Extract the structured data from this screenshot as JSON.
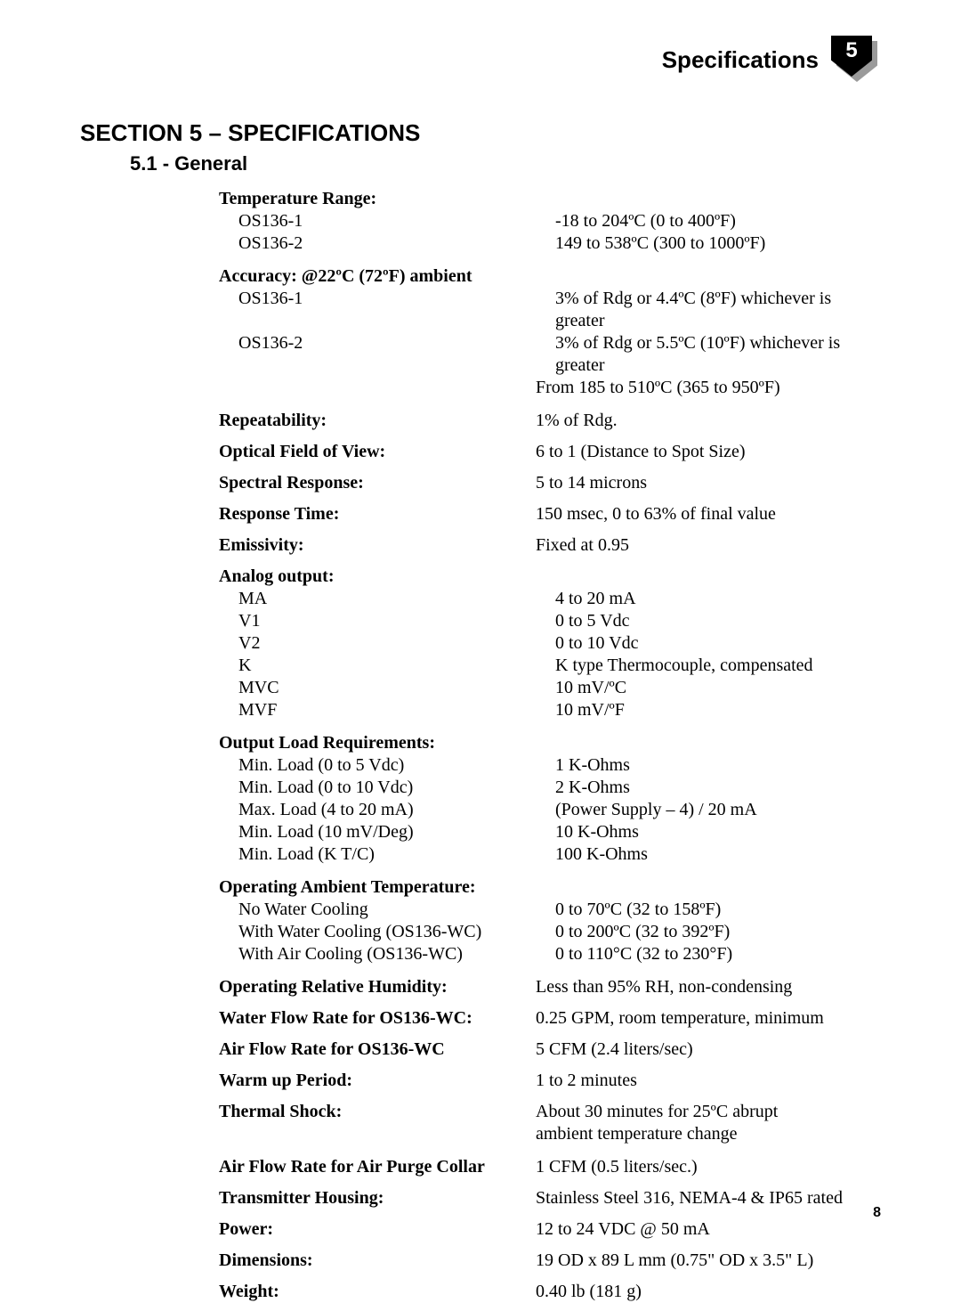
{
  "colors": {
    "text": "#000000",
    "badge_bg": "#000000",
    "badge_text": "#ffffff",
    "badge_shadow": "#9a9a9a",
    "page_bg": "#ffffff"
  },
  "typography": {
    "heading_family": "Arial Black",
    "body_family": "Palatino",
    "heading_size_pt": 20,
    "body_size_pt": 15
  },
  "header": {
    "title": "Specifications",
    "badge_number": "5"
  },
  "section_title": "SECTION 5 – SPECIFICATIONS",
  "subsection_title": "5.1 - General",
  "page_number": "8",
  "specs": {
    "temperature_range": {
      "label": "Temperature Range:",
      "items": [
        {
          "label": "OS136-1",
          "value": "-18 to 204ºC (0 to 400ºF)"
        },
        {
          "label": "OS136-2",
          "value": "149 to 538ºC (300 to 1000ºF)"
        }
      ]
    },
    "accuracy": {
      "label": "Accuracy: @22ºC (72ºF) ambient",
      "items": [
        {
          "label": "OS136-1",
          "value": "3% of Rdg or 4.4ºC (8ºF) whichever is greater"
        },
        {
          "label": "OS136-2",
          "value": "3% of Rdg or 5.5ºC (10ºF) whichever is greater"
        }
      ],
      "extra": "From 185 to 510ºC (365 to 950ºF)"
    },
    "repeatability": {
      "label": "Repeatability:",
      "value": "1% of Rdg."
    },
    "optical_fov": {
      "label": "Optical Field of View:",
      "value": "6 to 1 (Distance to Spot Size)"
    },
    "spectral": {
      "label": "Spectral Response:",
      "value": "5 to 14 microns"
    },
    "response_time": {
      "label": "Response Time:",
      "value": "150 msec, 0 to 63% of final value"
    },
    "emissivity": {
      "label": "Emissivity:",
      "value": "Fixed at 0.95"
    },
    "analog_output": {
      "label": "Analog output:",
      "items": [
        {
          "label": "MA",
          "value": "4 to 20 mA"
        },
        {
          "label": "V1",
          "value": "0 to 5 Vdc"
        },
        {
          "label": "V2",
          "value": "0 to 10 Vdc"
        },
        {
          "label": "K",
          "value": "K type Thermocouple, compensated"
        },
        {
          "label": "MVC",
          "value": "10 mV/ºC"
        },
        {
          "label": "MVF",
          "value": "10 mV/ºF"
        }
      ]
    },
    "output_load": {
      "label": "Output Load Requirements:",
      "items": [
        {
          "label": "Min. Load (0 to 5 Vdc)",
          "value": "1 K-Ohms"
        },
        {
          "label": "Min. Load (0 to 10 Vdc)",
          "value": "2 K-Ohms"
        },
        {
          "label": "Max. Load (4 to 20 mA)",
          "value": "(Power Supply – 4) / 20 mA"
        },
        {
          "label": "Min. Load (10 mV/Deg)",
          "value": "10 K-Ohms"
        },
        {
          "label": "Min. Load (K T/C)",
          "value": "100 K-Ohms"
        }
      ]
    },
    "operating_temp": {
      "label": "Operating Ambient Temperature:",
      "items": [
        {
          "label": "No Water Cooling",
          "value": "0 to 70ºC (32 to 158ºF)"
        },
        {
          "label": "With Water Cooling (OS136-WC)",
          "value": "0 to 200ºC (32 to 392ºF)"
        },
        {
          "label": "With Air Cooling (OS136-WC)",
          "value": "0 to 110°C (32 to 230°F)"
        }
      ]
    },
    "humidity": {
      "label": "Operating Relative Humidity:",
      "value": "Less than 95% RH, non-condensing"
    },
    "water_flow": {
      "label": "Water Flow Rate for OS136-WC:",
      "value": "0.25 GPM, room temperature, minimum"
    },
    "air_flow_wc": {
      "label": "Air Flow Rate for OS136-WC",
      "value": "5 CFM (2.4 liters/sec)"
    },
    "warm_up": {
      "label": "Warm up Period:",
      "value": "1 to 2 minutes"
    },
    "thermal_shock": {
      "label": "Thermal Shock:",
      "value1": "About 30 minutes for 25ºC abrupt",
      "value2": "ambient temperature change"
    },
    "air_flow_purge": {
      "label": "Air Flow Rate for Air Purge Collar",
      "value": "1 CFM (0.5 liters/sec.)"
    },
    "housing": {
      "label": "Transmitter Housing:",
      "value": "Stainless Steel 316, NEMA-4 & IP65 rated"
    },
    "power": {
      "label": "Power:",
      "value": "12 to 24 VDC @ 50 mA"
    },
    "dimensions": {
      "label": "Dimensions:",
      "value": "19 OD x 89 L mm (0.75\" OD x 3.5\" L)"
    },
    "weight": {
      "label": "Weight:",
      "value": "0.40 lb (181 g)"
    }
  }
}
